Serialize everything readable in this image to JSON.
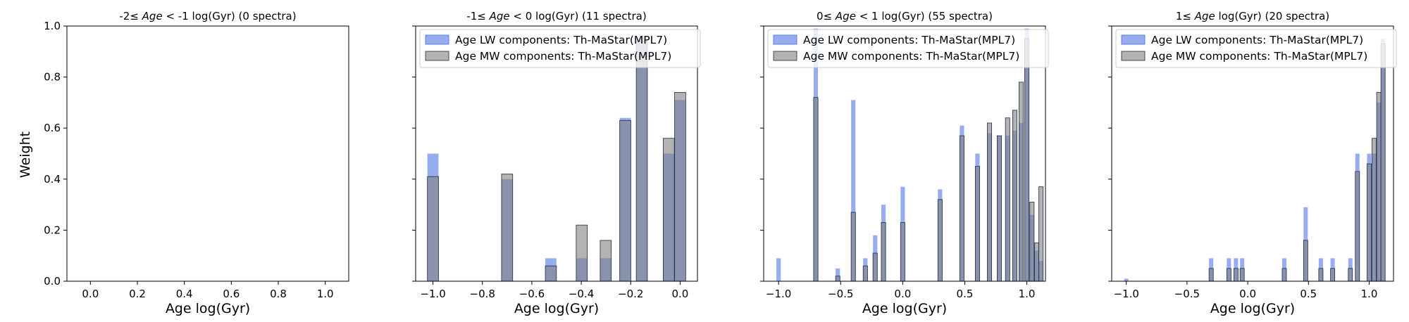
{
  "figure": {
    "ylabel": "Weight",
    "xlabel": "Age log(Gyr)"
  },
  "legend_labels": {
    "lw": "Age LW components: Th-MaStar(MPL7)",
    "mw": "Age MW components: Th-MaStar(MPL7)"
  },
  "colors": {
    "lw_fill": "#4169e1",
    "mw_fill": "#808080",
    "overlap_fill": "#3a5fcd",
    "edge": "#1f2a44"
  },
  "chart_data": [
    {
      "type": "bar",
      "title": "-2 ≤ Age < -1 log(Gyr) (0 spectra)",
      "title_parts": [
        "-2≤",
        "Age",
        "< -1 log(Gyr) (0 spectra)"
      ],
      "xlabel": "Age log(Gyr)",
      "ylabel": "Weight",
      "xlim": [
        -0.1,
        1.1
      ],
      "ylim": [
        0,
        1.0
      ],
      "xticks": [
        0.0,
        0.2,
        0.4,
        0.6,
        0.8,
        1.0
      ],
      "xtick_labels": [
        "0.0",
        "0.2",
        "0.4",
        "0.6",
        "0.8",
        "1.0"
      ],
      "yticks": [
        0.0,
        0.2,
        0.4,
        0.6,
        0.8,
        1.0
      ],
      "ytick_labels": [
        "0.0",
        "0.2",
        "0.4",
        "0.6",
        "0.8",
        "1.0"
      ],
      "legend": false,
      "bar_width": 0.0,
      "series": [
        {
          "name": "Age LW components: Th-MaStar(MPL7)",
          "x": [],
          "values": []
        },
        {
          "name": "Age MW components: Th-MaStar(MPL7)",
          "x": [],
          "values": []
        }
      ]
    },
    {
      "type": "bar",
      "title": "-1 ≤ Age < 0 log(Gyr) (11 spectra)",
      "title_parts": [
        "-1≤",
        "Age",
        "< 0 log(Gyr) (11 spectra)"
      ],
      "xlabel": "Age log(Gyr)",
      "xlim": [
        -1.07,
        0.07
      ],
      "ylim": [
        0,
        1.0
      ],
      "xticks": [
        -1.0,
        -0.8,
        -0.6,
        -0.4,
        -0.2,
        0.0
      ],
      "xtick_labels": [
        "−1.0",
        "−0.8",
        "−0.6",
        "−0.4",
        "−0.2",
        "0.0"
      ],
      "yticks": [
        0.0,
        0.2,
        0.4,
        0.6,
        0.8,
        1.0
      ],
      "legend": true,
      "legend_position": "upper left",
      "bar_width": 0.045,
      "series": [
        {
          "name": "Age LW components: Th-MaStar(MPL7)",
          "x": [
            -1.0,
            -0.7,
            -0.523,
            -0.398,
            -0.301,
            -0.222,
            -0.155,
            -0.046,
            0.0
          ],
          "values": [
            0.5,
            0.4,
            0.09,
            0.09,
            0.09,
            0.64,
            0.96,
            0.5,
            0.71
          ]
        },
        {
          "name": "Age MW components: Th-MaStar(MPL7)",
          "x": [
            -1.0,
            -0.7,
            -0.523,
            -0.398,
            -0.301,
            -0.222,
            -0.155,
            -0.046,
            0.0
          ],
          "values": [
            0.41,
            0.42,
            0.06,
            0.22,
            0.16,
            0.63,
            0.94,
            0.56,
            0.74
          ]
        }
      ]
    },
    {
      "type": "bar",
      "title": "0 ≤ Age < 1 log(Gyr) (55 spectra)",
      "title_parts": [
        "0≤",
        "Age",
        "< 1 log(Gyr) (55 spectra)"
      ],
      "xlabel": "Age log(Gyr)",
      "xlim": [
        -1.12,
        1.15
      ],
      "ylim": [
        0,
        1.0
      ],
      "xticks": [
        -1.0,
        -0.5,
        0.0,
        0.5,
        1.0
      ],
      "xtick_labels": [
        "−1.0",
        "−0.5",
        "0.0",
        "0.5",
        "1.0"
      ],
      "yticks": [
        0.0,
        0.2,
        0.4,
        0.6,
        0.8,
        1.0
      ],
      "legend": true,
      "legend_position": "upper left",
      "bar_width": 0.035,
      "series": [
        {
          "name": "Age LW components: Th-MaStar(MPL7)",
          "x": [
            -1.0,
            -0.7,
            -0.523,
            -0.398,
            -0.301,
            -0.222,
            -0.155,
            0.0,
            0.301,
            0.477,
            0.602,
            0.699,
            0.778,
            0.845,
            0.903,
            0.954,
            1.0,
            1.041,
            1.079,
            1.114
          ],
          "values": [
            0.09,
            0.99,
            0.05,
            0.71,
            0.09,
            0.18,
            0.3,
            0.37,
            0.36,
            0.61,
            0.5,
            0.58,
            0.57,
            0.57,
            0.59,
            0.62,
            0.99,
            0.26,
            0.12,
            0.08
          ]
        },
        {
          "name": "Age MW components: Th-MaStar(MPL7)",
          "x": [
            -1.0,
            -0.7,
            -0.523,
            -0.398,
            -0.301,
            -0.222,
            -0.155,
            0.0,
            0.301,
            0.477,
            0.602,
            0.699,
            0.778,
            0.845,
            0.903,
            0.954,
            1.0,
            1.041,
            1.079,
            1.114
          ],
          "values": [
            0.0,
            0.72,
            0.02,
            0.27,
            0.06,
            0.11,
            0.23,
            0.23,
            0.32,
            0.57,
            0.45,
            0.62,
            0.57,
            0.64,
            0.67,
            0.78,
            0.95,
            0.31,
            0.15,
            0.37
          ]
        }
      ]
    },
    {
      "type": "bar",
      "title": "1 ≤ Age log(Gyr) (20 spectra)",
      "title_parts": [
        "1≤",
        "Age",
        "log(Gyr) (20 spectra)"
      ],
      "xlabel": "Age log(Gyr)",
      "xlim": [
        -1.12,
        1.2
      ],
      "ylim": [
        0,
        1.0
      ],
      "xticks": [
        -1.0,
        -0.5,
        0.0,
        0.5,
        1.0
      ],
      "xtick_labels": [
        "−1.0",
        "−0.5",
        "0.0",
        "0.5",
        "1.0"
      ],
      "yticks": [
        0.0,
        0.2,
        0.4,
        0.6,
        0.8,
        1.0
      ],
      "legend": true,
      "legend_position": "upper left",
      "bar_width": 0.035,
      "series": [
        {
          "name": "Age LW components: Th-MaStar(MPL7)",
          "x": [
            -1.0,
            -0.301,
            -0.155,
            -0.097,
            -0.046,
            0.301,
            0.477,
            0.602,
            0.699,
            0.845,
            0.903,
            1.0,
            1.041,
            1.079,
            1.114
          ],
          "values": [
            0.01,
            0.09,
            0.09,
            0.09,
            0.09,
            0.09,
            0.29,
            0.09,
            0.09,
            0.09,
            0.5,
            0.5,
            0.5,
            0.7,
            0.95
          ]
        },
        {
          "name": "Age MW components: Th-MaStar(MPL7)",
          "x": [
            -1.0,
            -0.301,
            -0.155,
            -0.097,
            -0.046,
            0.301,
            0.477,
            0.602,
            0.699,
            0.845,
            0.903,
            1.0,
            1.041,
            1.079,
            1.114
          ],
          "values": [
            0.0,
            0.05,
            0.05,
            0.05,
            0.05,
            0.05,
            0.16,
            0.05,
            0.05,
            0.05,
            0.43,
            0.46,
            0.56,
            0.74,
            0.93
          ]
        }
      ]
    }
  ]
}
